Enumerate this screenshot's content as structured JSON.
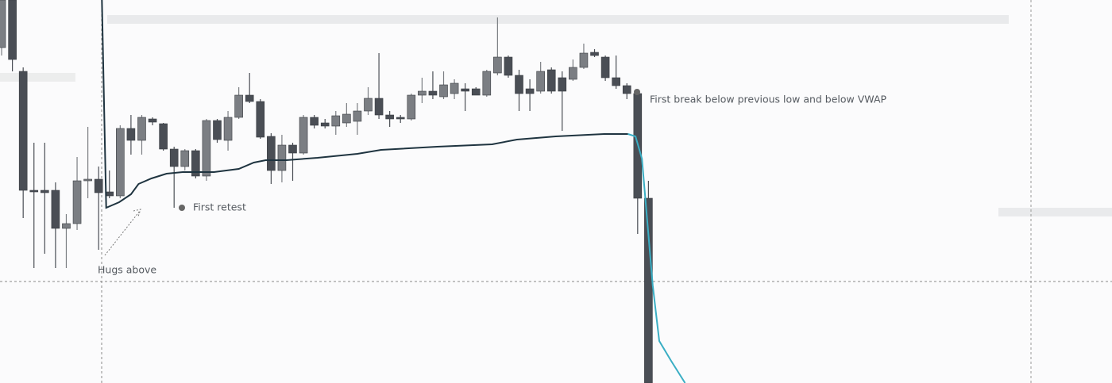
{
  "chart_data": {
    "type": "candlestick",
    "up_color": "#7b7e83",
    "down_color": "#4a4e55",
    "xlim": [
      -0.15,
      103.0
    ],
    "ylim": [
      0,
      483
    ],
    "open": [
      423,
      483,
      393,
      243,
      243,
      243,
      195,
      201,
      255,
      257,
      241,
      236,
      321,
      306,
      333,
      327,
      295,
      273,
      293,
      261,
      331,
      306,
      335,
      363,
      355,
      311,
      268,
      300,
      290,
      335,
      328,
      324,
      328,
      330,
      343,
      359,
      338,
      335,
      333,
      363,
      368,
      361,
      365,
      371,
      371,
      363,
      391,
      411,
      388,
      371,
      368,
      395,
      385,
      383,
      398,
      417,
      411,
      385,
      375,
      365,
      233
    ],
    "high": [
      483,
      483,
      398,
      303,
      303,
      253,
      213,
      285,
      323,
      273,
      268,
      325,
      338,
      338,
      335,
      328,
      298,
      295,
      295,
      333,
      333,
      343,
      373,
      391,
      358,
      315,
      313,
      303,
      338,
      338,
      333,
      343,
      353,
      353,
      373,
      416,
      343,
      338,
      365,
      385,
      393,
      393,
      383,
      378,
      373,
      395,
      461,
      413,
      395,
      383,
      405,
      398,
      393,
      408,
      428,
      421,
      413,
      413,
      378,
      368,
      255
    ],
    "low": [
      413,
      393,
      208,
      145,
      163,
      145,
      145,
      193,
      233,
      168,
      233,
      233,
      288,
      288,
      325,
      293,
      221,
      268,
      258,
      255,
      303,
      293,
      333,
      353,
      308,
      251,
      253,
      255,
      288,
      321,
      321,
      313,
      323,
      313,
      338,
      333,
      323,
      328,
      331,
      353,
      358,
      358,
      358,
      343,
      363,
      361,
      388,
      385,
      343,
      343,
      365,
      365,
      318,
      381,
      396,
      411,
      381,
      371,
      358,
      188,
      0
    ],
    "close": [
      483,
      408,
      243,
      241,
      240,
      195,
      201,
      255,
      257,
      240,
      236,
      321,
      306,
      335,
      329,
      295,
      273,
      293,
      261,
      331,
      307,
      335,
      363,
      355,
      310,
      268,
      300,
      290,
      335,
      325,
      324,
      337,
      339,
      343,
      359,
      338,
      333,
      333,
      363,
      368,
      363,
      376,
      378,
      368,
      363,
      393,
      411,
      388,
      365,
      365,
      393,
      368,
      368,
      398,
      416,
      413,
      385,
      375,
      365,
      233,
      0
    ],
    "series": [
      {
        "color": "#1f3440",
        "x": [
          9.3,
          9.7,
          10.9,
          12.0,
          12.7,
          13.9,
          15.3,
          16.8,
          19.7,
          22.0,
          23.4,
          24.5,
          26.4,
          29.3,
          33.0,
          35.2,
          40.4,
          45.5,
          47.8,
          51.4,
          55.9,
          58.1
        ],
        "values": [
          483,
          221,
          228,
          238,
          251,
          258,
          264,
          266,
          266,
          270,
          278,
          281,
          281,
          284,
          289,
          294,
          298,
          301,
          307,
          311,
          314,
          314
        ]
      },
      {
        "color": "#3aaec4",
        "x": [
          58.1,
          58.8,
          59.4,
          59.9,
          60.4,
          61.0,
          62.1,
          63.4
        ],
        "values": [
          314,
          311,
          283,
          203,
          123,
          53,
          28,
          0
        ]
      }
    ],
    "annotations": [
      "Hugs above",
      "First retest",
      "First break below previous low and below VWAP"
    ]
  }
}
